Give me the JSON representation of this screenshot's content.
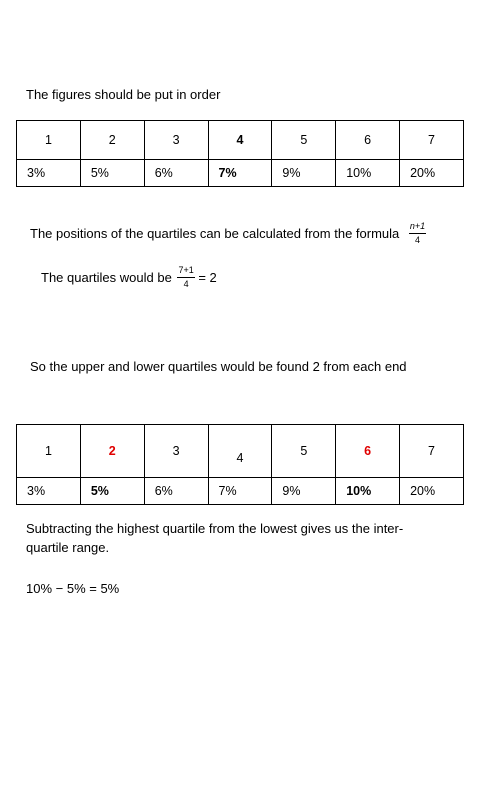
{
  "intro": "The figures should be put in order",
  "table1": {
    "positions": [
      "1",
      "2",
      "3",
      "4",
      "5",
      "6",
      "7"
    ],
    "values": [
      "3%",
      "5%",
      "6%",
      "7%",
      "9%",
      "10%",
      "20%"
    ]
  },
  "formula": {
    "text": "The positions of the quartiles can be calculated from the formula",
    "numerator": "n+1",
    "denominator": "4"
  },
  "quartile_calc": {
    "text": "The quartiles would be",
    "numerator": "7+1",
    "denominator": "4",
    "result": "= 2"
  },
  "ends_text": "So the upper and lower quartiles would be found 2 from each end",
  "table2": {
    "positions": [
      "1",
      "2",
      "3",
      "4",
      "5",
      "6",
      "7"
    ],
    "values": [
      "3%",
      "5%",
      "6%",
      "7%",
      "9%",
      "10%",
      "20%"
    ],
    "highlight_color": "#e00000"
  },
  "iqr_text_line1": "Subtracting the highest quartile from the lowest gives us the inter-",
  "iqr_text_line2": "quartile range.",
  "iqr_result": "10% − 5% = 5%"
}
